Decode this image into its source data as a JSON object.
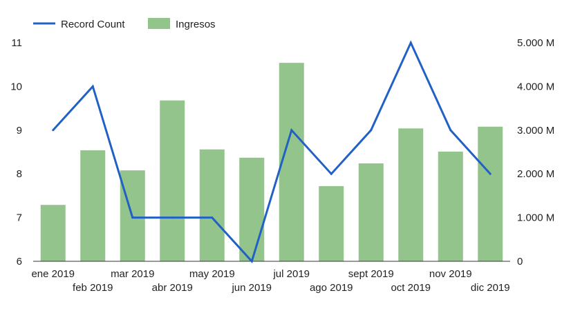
{
  "chart_data": {
    "type": "bar+line",
    "categories": [
      "ene 2019",
      "feb 2019",
      "mar 2019",
      "abr 2019",
      "may 2019",
      "jun 2019",
      "jul 2019",
      "ago 2019",
      "sept 2019",
      "oct 2019",
      "nov 2019",
      "dic 2019"
    ],
    "series": [
      {
        "name": "Record Count",
        "type": "line",
        "axis": "left",
        "color": "#2160c4",
        "values": [
          9,
          10,
          7,
          7,
          7,
          6,
          9,
          8,
          9,
          11,
          9,
          8
        ]
      },
      {
        "name": "Ingresos",
        "type": "bar",
        "axis": "right",
        "color": "#93c48b",
        "values": [
          1290,
          2540,
          2080,
          3680,
          2560,
          2370,
          4540,
          1720,
          2240,
          3040,
          2510,
          3080
        ]
      }
    ],
    "left_axis": {
      "min": 6,
      "max": 11,
      "ticks": [
        "6",
        "7",
        "8",
        "9",
        "10",
        "11"
      ]
    },
    "right_axis": {
      "min": 0,
      "max": 5000,
      "unit": "M",
      "ticks": [
        "0",
        "1.000 M",
        "2.000 M",
        "3.000 M",
        "4.000 M",
        "5.000 M"
      ]
    },
    "legend": "top-left",
    "grid": false
  }
}
